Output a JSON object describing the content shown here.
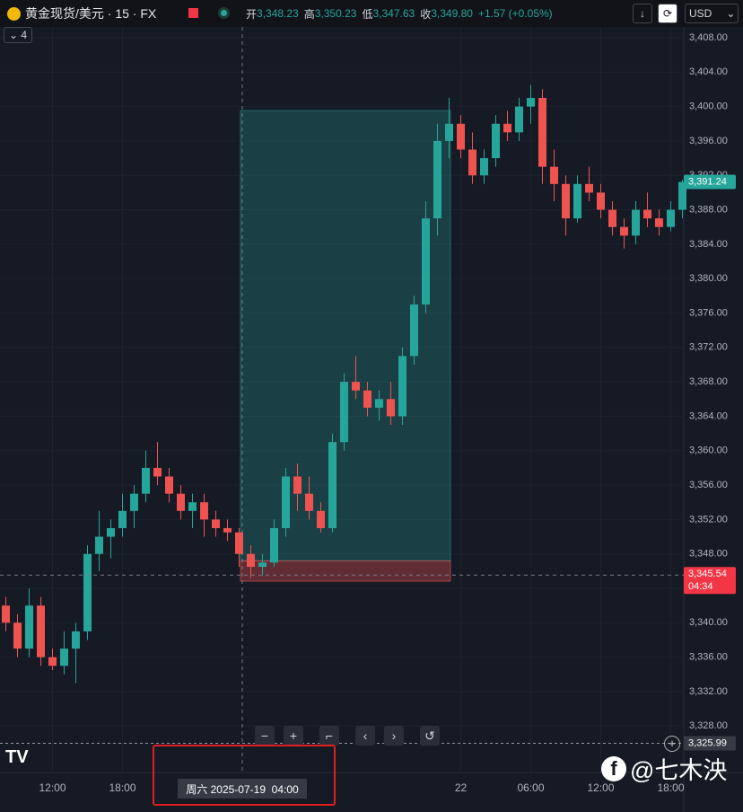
{
  "header": {
    "symbol": "黄金现货/美元 · 15 · FX",
    "open_label": "开",
    "open": "3,348.23",
    "high_label": "高",
    "high": "3,350.23",
    "low_label": "低",
    "low": "3,347.63",
    "close_label": "收",
    "close": "3,349.80",
    "change": "+1.57 (+0.05%)",
    "indicators": "4",
    "currency": "USD"
  },
  "watermark": "@七木泱",
  "crosshair_time": "周六 2025-07-19  04:00",
  "chart_data": {
    "type": "candlestick",
    "up_color": "#26a69a",
    "down_color": "#ef5350",
    "categories": [
      null,
      null,
      null,
      null,
      "12:00",
      null,
      null,
      null,
      null,
      null,
      "18:00",
      null,
      null,
      null,
      null,
      null,
      null,
      null,
      null,
      null,
      null,
      null,
      null,
      null,
      null,
      null,
      null,
      null,
      null,
      null,
      null,
      null,
      null,
      null,
      null,
      null,
      null,
      null,
      null,
      "22",
      null,
      null,
      null,
      null,
      null,
      "06:00",
      null,
      null,
      null,
      null,
      null,
      "12:00",
      null,
      null,
      null,
      null,
      null,
      "18:00",
      null
    ],
    "open": [
      3342,
      3340,
      3337,
      3342,
      3336,
      3335,
      3337,
      3339,
      3348,
      3350,
      3351,
      3353,
      3355,
      3358,
      3357,
      3355,
      3353,
      3354,
      3352,
      3351,
      3350.5,
      3348,
      3346.5,
      3347,
      3351,
      3357,
      3355,
      3353,
      3351,
      3361,
      3368,
      3367,
      3365,
      3366,
      3364,
      3371,
      3377,
      3387,
      3396,
      3398,
      3395,
      3392,
      3394,
      3398,
      3397,
      3400,
      3401,
      3393,
      3391,
      3387,
      3391,
      3390,
      3388,
      3386,
      3385,
      3388,
      3387,
      3386,
      3388
    ],
    "high": [
      3343,
      3341,
      3344,
      3343,
      3337,
      3339,
      3340,
      3349,
      3353,
      3352,
      3355,
      3356,
      3360,
      3361,
      3358,
      3356,
      3355,
      3355,
      3353,
      3352,
      3351,
      3349,
      3348,
      3352,
      3358,
      3358.5,
      3357,
      3354,
      3362,
      3369,
      3371,
      3368,
      3367,
      3368,
      3372,
      3378,
      3389,
      3398,
      3401,
      3399,
      3397,
      3395,
      3399,
      3399.5,
      3401,
      3402.5,
      3402,
      3395,
      3392,
      3392,
      3393,
      3391,
      3389,
      3387,
      3389,
      3390,
      3388,
      3389,
      3391.5
    ],
    "low": [
      3339,
      3336,
      3336,
      3335,
      3334.5,
      3334,
      3333,
      3338,
      3346,
      3347.5,
      3350,
      3351,
      3354,
      3356,
      3354,
      3352,
      3351,
      3350,
      3350,
      3349.5,
      3346.5,
      3345.2,
      3345.5,
      3346.5,
      3350,
      3353,
      3352,
      3350.5,
      3350.5,
      3360,
      3366,
      3364,
      3363.5,
      3363,
      3363,
      3370,
      3376,
      3385,
      3394,
      3394,
      3391,
      3391,
      3393,
      3396,
      3396,
      3398,
      3391,
      3389,
      3385,
      3386.5,
      3389,
      3387,
      3385,
      3383.5,
      3384,
      3386,
      3385,
      3385.5,
      3387
    ],
    "close": [
      3340,
      3337,
      3342,
      3336,
      3335,
      3337,
      3339,
      3348,
      3350,
      3351,
      3353,
      3355,
      3358,
      3357,
      3355,
      3353,
      3354,
      3352,
      3351,
      3350.5,
      3348,
      3346.5,
      3347,
      3351,
      3357,
      3355,
      3353,
      3351,
      3361,
      3368,
      3367,
      3365,
      3366,
      3364,
      3371,
      3377,
      3387,
      3396,
      3398,
      3395,
      3392,
      3394,
      3398,
      3397,
      3400,
      3401,
      3393,
      3391,
      3387,
      3391,
      3390,
      3388,
      3386,
      3385,
      3388,
      3387,
      3386,
      3388,
      3391.24
    ],
    "ylim": [
      3322.6,
      3409.25
    ],
    "yticks": [
      {
        "value": 3328,
        "label": "3,328.00"
      },
      {
        "value": 3332,
        "label": "3,332.00"
      },
      {
        "value": 3336,
        "label": "3,336.00"
      },
      {
        "value": 3340,
        "label": "3,340.00"
      },
      {
        "value": 3344,
        "label": "3,344.00"
      },
      {
        "value": 3348,
        "label": "3,348.00"
      },
      {
        "value": 3352,
        "label": "3,352.00"
      },
      {
        "value": 3356,
        "label": "3,356.00"
      },
      {
        "value": 3360,
        "label": "3,360.00"
      },
      {
        "value": 3364,
        "label": "3,364.00"
      },
      {
        "value": 3368,
        "label": "3,368.00"
      },
      {
        "value": 3372,
        "label": "3,372.00"
      },
      {
        "value": 3376,
        "label": "3,376.00"
      },
      {
        "value": 3380,
        "label": "3,380.00"
      },
      {
        "value": 3384,
        "label": "3,384.00"
      },
      {
        "value": 3388,
        "label": "3,388.00"
      },
      {
        "value": 3392,
        "label": "3,392.00"
      },
      {
        "value": 3396,
        "label": "3,396.00"
      },
      {
        "value": 3400,
        "label": "3,400.00"
      },
      {
        "value": 3404,
        "label": "3,404.00"
      },
      {
        "value": 3408,
        "label": "3,408.00"
      }
    ],
    "position": {
      "target": 3399.54,
      "entry": 3347.2,
      "stop": 3344.83
    },
    "last_price": {
      "value": 3391.24,
      "label": "3,391.24",
      "color": "#26a69a"
    },
    "cursor_price": {
      "value": 3345.54,
      "label": "3,345.54",
      "countdown": "04:34",
      "color": "#f23645"
    },
    "alert_price": {
      "value": 3325.99,
      "label": "3,325.99"
    }
  }
}
